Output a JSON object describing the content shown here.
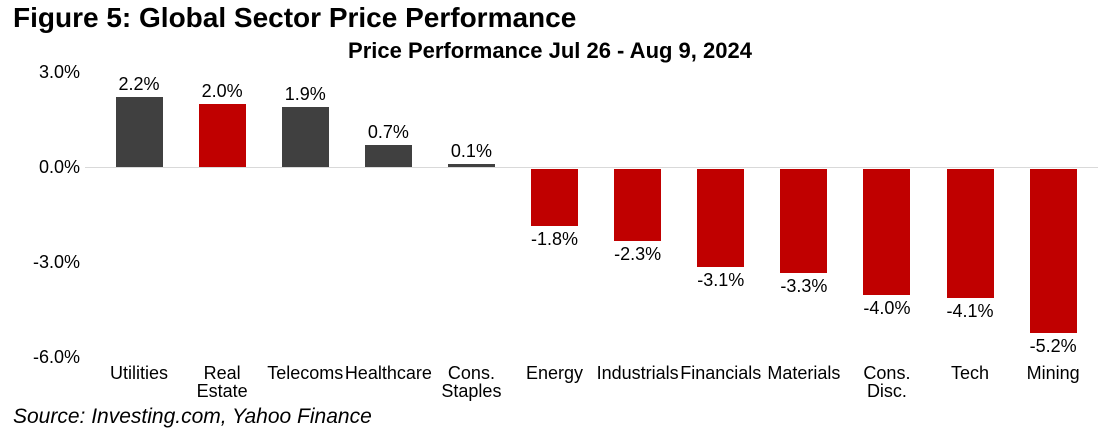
{
  "figure_title": "Figure 5: Global Sector Price Performance",
  "source_note": "Source: Investing.com, Yahoo Finance",
  "chart_data": {
    "type": "bar",
    "title": "Price Performance Jul 26 - Aug 9, 2024",
    "categories": [
      "Utilities",
      "Real\nEstate",
      "Telecoms",
      "Healthcare",
      "Cons.\nStaples",
      "Energy",
      "Industrials",
      "Financials",
      "Materials",
      "Cons.\nDisc.",
      "Tech",
      "Mining"
    ],
    "values": [
      2.2,
      2.0,
      1.9,
      0.7,
      0.1,
      -1.8,
      -2.3,
      -3.1,
      -3.3,
      -4.0,
      -4.1,
      -5.2
    ],
    "value_labels": [
      "2.2%",
      "2.0%",
      "1.9%",
      "0.7%",
      "0.1%",
      "-1.8%",
      "-2.3%",
      "-3.1%",
      "-3.3%",
      "-4.0%",
      "-4.1%",
      "-5.2%"
    ],
    "bar_colors": [
      "dark",
      "red",
      "dark",
      "dark",
      "dark",
      "red",
      "red",
      "red",
      "red",
      "red",
      "red",
      "red"
    ],
    "colors": {
      "dark": "#404040",
      "red": "#C00000",
      "axis_line": "#D9D9D9",
      "text": "#000000",
      "background": "#FFFFFF"
    },
    "y_ticks": [
      {
        "label": "3.0%",
        "value": 3
      },
      {
        "label": "0.0%",
        "value": 0
      },
      {
        "label": "-3.0%",
        "value": -3
      },
      {
        "label": "-6.0%",
        "value": -6
      }
    ],
    "ylim": [
      -6,
      3
    ],
    "xlabel": "",
    "ylabel": "",
    "grid": false,
    "legend": null
  }
}
